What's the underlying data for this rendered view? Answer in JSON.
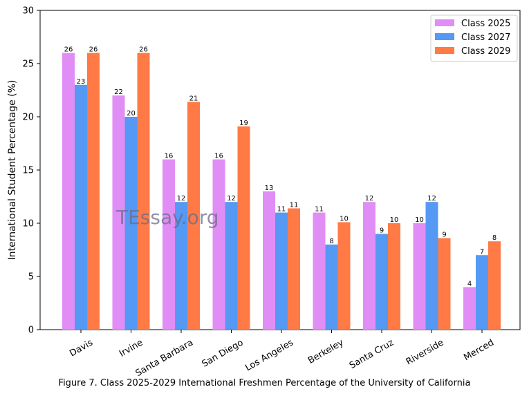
{
  "chart_data": {
    "type": "bar",
    "categories": [
      "Davis",
      "Irvine",
      "Santa Barbara",
      "San Diego",
      "Los Angeles",
      "Berkeley",
      "Santa Cruz",
      "Riverside",
      "Merced"
    ],
    "series": [
      {
        "name": "Class 2025",
        "color": "#e08ef5",
        "values": [
          26,
          22,
          16,
          16,
          13,
          11,
          12,
          10,
          4
        ],
        "labels": [
          "26",
          "22",
          "16",
          "16",
          "13",
          "11",
          "12",
          "10",
          "4"
        ]
      },
      {
        "name": "Class 2027",
        "color": "#5599f5",
        "values": [
          23,
          20,
          12,
          12,
          11,
          8,
          9,
          12,
          7
        ],
        "labels": [
          "23",
          "20",
          "12",
          "12",
          "11",
          "8",
          "9",
          "12",
          "7"
        ]
      },
      {
        "name": "Class 2029",
        "color": "#ff7a45",
        "values": [
          26,
          26,
          21.4,
          19.1,
          11.4,
          10.1,
          10,
          8.6,
          8.3
        ],
        "labels": [
          "26",
          "26",
          "21",
          "19",
          "11",
          "10",
          "10",
          "9",
          "8"
        ]
      }
    ],
    "ylabel": "International Student Percentage (%)",
    "xlabel": "",
    "ylim": [
      0,
      30
    ],
    "yticks": [
      0,
      5,
      10,
      15,
      20,
      25,
      30
    ],
    "grid": false,
    "legend_position": "top-right",
    "x_tick_rotation_deg": 30
  },
  "watermark": "TEssay.org",
  "caption": "Figure 7. Class 2025-2029 International Freshmen Percentage of the University of California"
}
